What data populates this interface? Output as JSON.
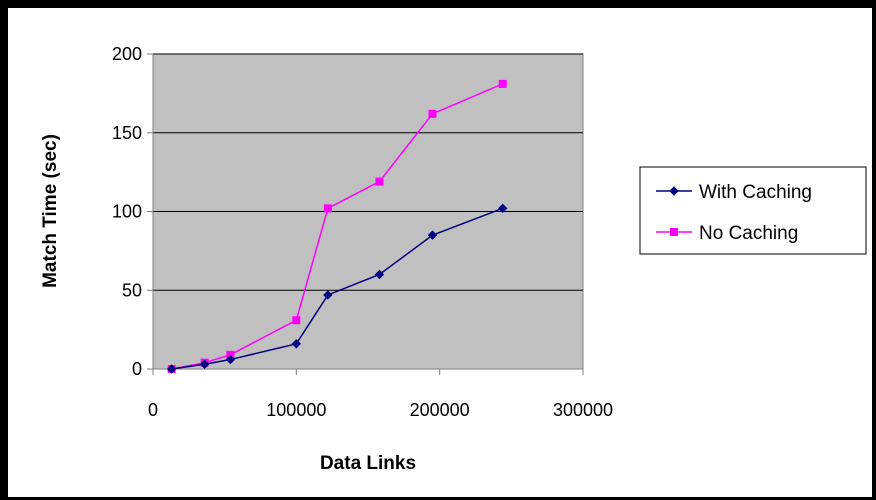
{
  "chart_data": {
    "type": "line",
    "title": "",
    "xlabel": "Data Links",
    "ylabel": "Match Time (sec)",
    "xlim": [
      0,
      300000
    ],
    "ylim": [
      0,
      200
    ],
    "x_ticks": [
      0,
      100000,
      200000,
      300000
    ],
    "y_ticks": [
      0,
      50,
      100,
      150,
      200
    ],
    "x_tick_labels": [
      "0",
      "100000",
      "200000",
      "300000"
    ],
    "y_tick_labels": [
      "0",
      "50",
      "100",
      "150",
      "200"
    ],
    "grid": "horizontal major gridlines",
    "plot_background": "#c0c0c0",
    "legend_position": "right",
    "series": [
      {
        "name": "With Caching",
        "color": "#000080",
        "marker": "diamond",
        "x": [
          13000,
          36000,
          54000,
          100000,
          122000,
          158000,
          195000,
          244000
        ],
        "values": [
          0,
          3,
          6,
          16,
          47,
          60,
          85,
          102
        ]
      },
      {
        "name": "No Caching",
        "color": "#ff00ff",
        "marker": "square",
        "x": [
          13000,
          36000,
          54000,
          100000,
          122000,
          158000,
          195000,
          244000
        ],
        "values": [
          0,
          4,
          9,
          31,
          102,
          119,
          162,
          181
        ]
      }
    ]
  }
}
